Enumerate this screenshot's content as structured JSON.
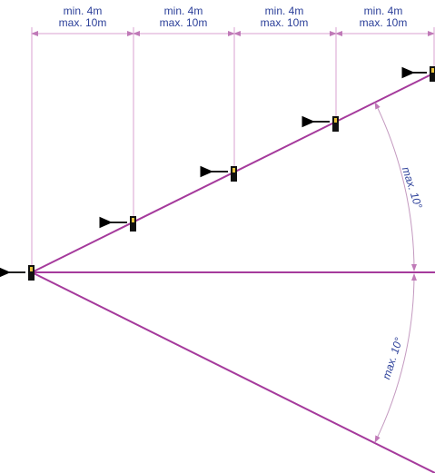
{
  "spacing_labels": [
    {
      "min": "min. 4m",
      "max": "max. 10m"
    },
    {
      "min": "min. 4m",
      "max": "max. 10m"
    },
    {
      "min": "min. 4m",
      "max": "max. 10m"
    },
    {
      "min": "min. 4m",
      "max": "max. 10m"
    }
  ],
  "angle_labels": [
    "max. 10°",
    "max. 10°"
  ]
}
